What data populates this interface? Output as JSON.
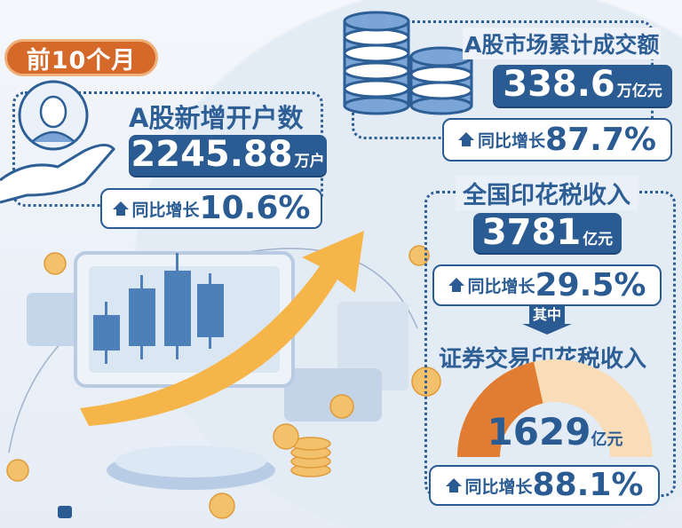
{
  "period_badge": "前10个月",
  "new_accounts": {
    "title": "A股新增开户数",
    "value": "2245.88",
    "unit": "万户",
    "growth_label": "同比增长",
    "growth_value": "10.6%"
  },
  "turnover": {
    "title": "A股市场累计成交额",
    "value": "338.6",
    "unit": "万亿元",
    "growth_label": "同比增长",
    "growth_value": "87.7%"
  },
  "stamp_tax": {
    "title": "全国印花税收入",
    "value": "3781",
    "unit": "亿元",
    "growth_label": "同比增长",
    "growth_value": "29.5%"
  },
  "of_which": "其中",
  "securities_stamp_tax": {
    "title": "证券交易印花税收入",
    "value": "1629",
    "unit": "亿元",
    "growth_label": "同比增长",
    "growth_value": "88.1%",
    "share_of_total": 0.43
  },
  "colors": {
    "primary_blue": "#2a5b92",
    "accent_orange": "#d4692a",
    "gauge_light": "#f8ddb8",
    "gauge_dark": "#e07d32"
  },
  "icons": [
    "person-in-hand-icon",
    "coin-stack-icon",
    "up-arrow-icon",
    "down-arrow-icon",
    "monitor-candlestick-illustration",
    "rising-arrow-illustration"
  ]
}
